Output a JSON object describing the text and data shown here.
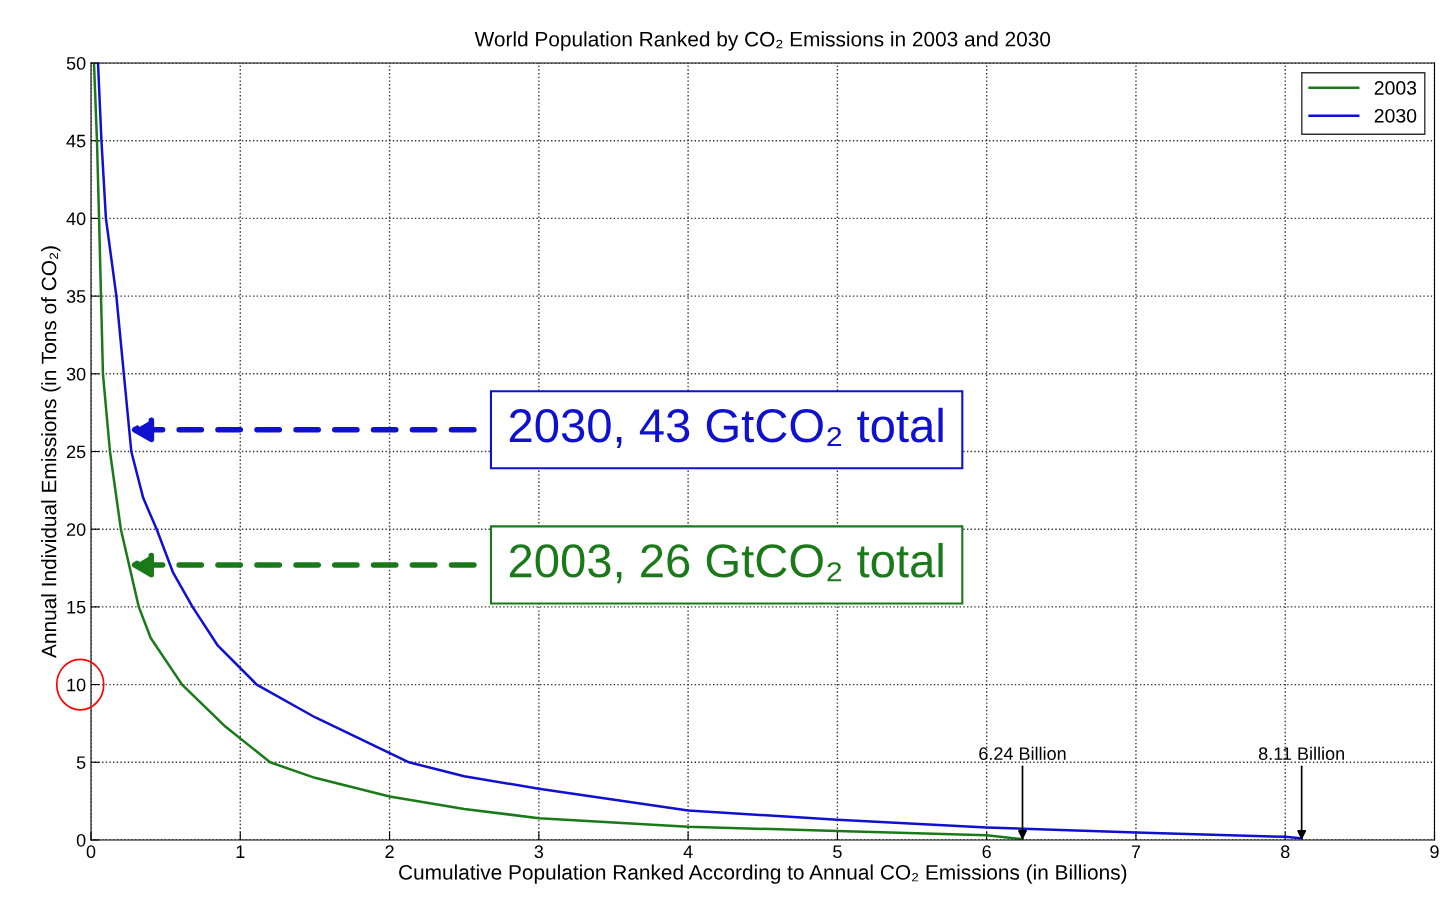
{
  "chart_data": {
    "type": "line",
    "title": "World Population Ranked by CO₂ Emissions in 2003 and 2030",
    "xlabel": "Cumulative Population Ranked According to Annual CO₂ Emissions (in Billions)",
    "ylabel": "Annual Individual Emissions (in Tons of CO₂)",
    "series": [
      {
        "name": "2003",
        "color": "#1a7a1a",
        "x": [
          0.02,
          0.04,
          0.054,
          0.08,
          0.127,
          0.2,
          0.32,
          0.4,
          0.61,
          0.9,
          1.2,
          1.5,
          2,
          2.5,
          3,
          4,
          5,
          6,
          6.24
        ],
        "values": [
          50,
          45,
          40,
          30,
          25,
          20,
          15,
          13,
          10,
          7.3,
          5,
          4,
          2.8,
          2,
          1.4,
          0.85,
          0.58,
          0.3,
          0.05
        ]
      },
      {
        "name": "2030",
        "color": "#1010d0",
        "x": [
          0.047,
          0.07,
          0.1,
          0.17,
          0.22,
          0.27,
          0.35,
          0.44,
          0.55,
          0.68,
          0.85,
          1.11,
          1.5,
          2.13,
          2.5,
          3,
          4,
          5,
          6,
          7,
          8,
          8.11
        ],
        "values": [
          50,
          45,
          40,
          35,
          30,
          25,
          22,
          20,
          17.2,
          15,
          12.5,
          10,
          7.9,
          5,
          4.1,
          3.3,
          1.9,
          1.3,
          0.8,
          0.48,
          0.2,
          0.1
        ]
      }
    ],
    "annotations": [
      "2003, 26 GtCO₂ total",
      "2030, 43 GtCO₂ total",
      {
        "text": "6.24 Billion",
        "x": 6.24,
        "y": 0
      },
      {
        "text": "8.11 Billion",
        "x": 8.11,
        "y": 0
      }
    ],
    "xlim": [
      0,
      9
    ],
    "xticks": [
      0,
      1,
      2,
      3,
      4,
      5,
      6,
      7,
      8,
      9
    ],
    "ylim": [
      0,
      50
    ],
    "yticks": [
      0,
      5,
      10,
      15,
      20,
      25,
      30,
      35,
      40,
      45,
      50
    ],
    "grid": true,
    "legend": "top right",
    "marker": "none",
    "line_style": "solid"
  }
}
